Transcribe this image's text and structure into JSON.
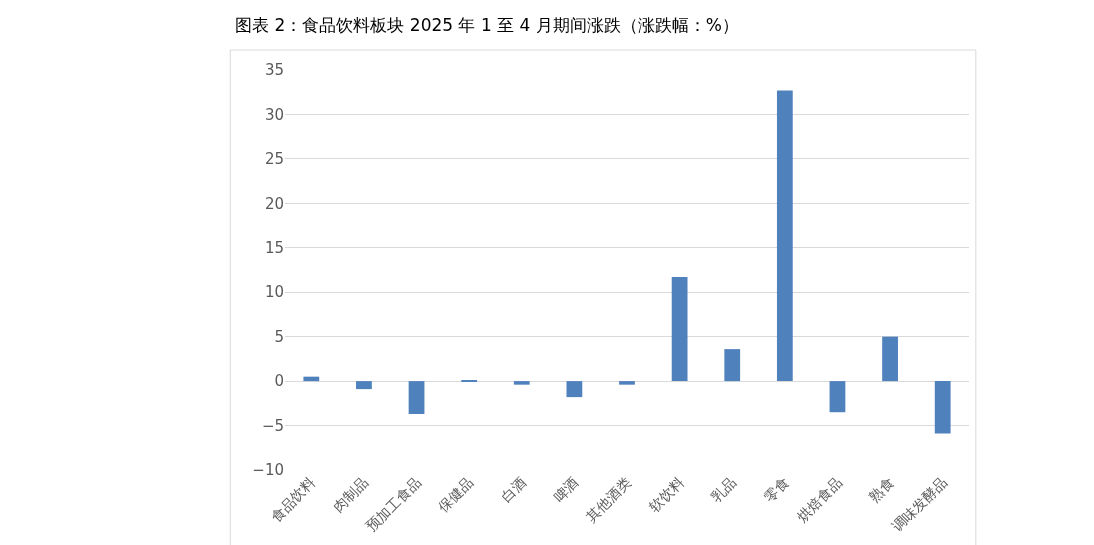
{
  "chart_data": {
    "type": "bar",
    "title": "图表 2：食品饮料板块 2025 年 1 至 4 月期间涨跌（涨跌幅：%）",
    "categories": [
      "食品饮料",
      "肉制品",
      "预加工食品",
      "保健品",
      "白酒",
      "啤酒",
      "其他酒类",
      "软饮料",
      "乳品",
      "零食",
      "烘焙食品",
      "熟食",
      "调味发酵品"
    ],
    "values": [
      0.5,
      -0.9,
      -3.7,
      0.1,
      -0.4,
      -1.8,
      -0.4,
      11.7,
      3.6,
      32.7,
      -3.5,
      5.0,
      -5.9
    ],
    "color": "#4f81bd",
    "ylim": [
      -10,
      35
    ],
    "yticks": [
      -10,
      -5,
      0,
      5,
      10,
      15,
      20,
      25,
      30,
      35
    ],
    "grid": "y"
  }
}
